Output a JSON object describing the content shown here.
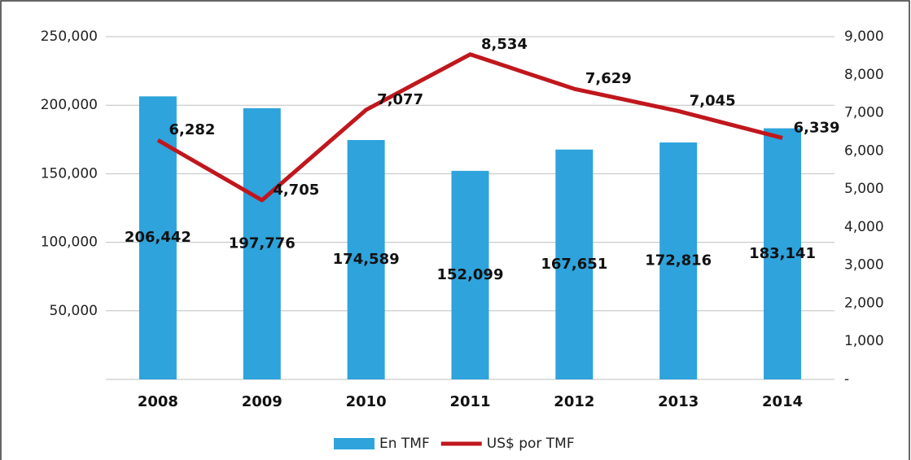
{
  "chart_data": {
    "type": "bar",
    "categories": [
      "2008",
      "2009",
      "2010",
      "2011",
      "2012",
      "2013",
      "2014"
    ],
    "series": [
      {
        "name": "En TMF",
        "type": "bar",
        "color": "#2ea3dc",
        "values": [
          206442,
          197776,
          174589,
          152099,
          167651,
          172816,
          183141
        ],
        "value_labels": [
          "206,442",
          "197,776",
          "174,589",
          "152,099",
          "167,651",
          "172,816",
          "183,141"
        ]
      },
      {
        "name": "US$ por TMF",
        "type": "line",
        "axis": "y2",
        "color": "#c0171d",
        "values": [
          6282,
          4705,
          7077,
          8534,
          7629,
          7045,
          6339
        ],
        "value_labels": [
          "6,282",
          "4,705",
          "7,077",
          "8,534",
          "7,629",
          "7,045",
          "6,339"
        ]
      }
    ],
    "ylim": [
      0,
      250000
    ],
    "yticks": [
      {
        "value": 50000,
        "label": "50,000"
      },
      {
        "value": 100000,
        "label": "100,000"
      },
      {
        "value": 150000,
        "label": "150,000"
      },
      {
        "value": 200000,
        "label": "200,000"
      },
      {
        "value": 250000,
        "label": "250,000"
      }
    ],
    "y2lim": [
      0,
      9000
    ],
    "y2ticks": [
      {
        "value": 0,
        "label": "-"
      },
      {
        "value": 1000,
        "label": "1,000"
      },
      {
        "value": 2000,
        "label": "2,000"
      },
      {
        "value": 3000,
        "label": "3,000"
      },
      {
        "value": 4000,
        "label": "4,000"
      },
      {
        "value": 5000,
        "label": "5,000"
      },
      {
        "value": 6000,
        "label": "6,000"
      },
      {
        "value": 7000,
        "label": "7,000"
      },
      {
        "value": 8000,
        "label": "8,000"
      },
      {
        "value": 9000,
        "label": "9,000"
      }
    ],
    "grid": true,
    "legend": "bottom"
  }
}
